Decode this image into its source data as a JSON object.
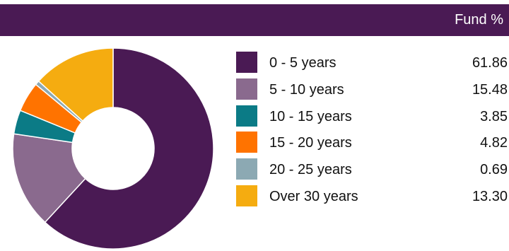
{
  "header": {
    "column_label": "Fund %"
  },
  "chart_data": {
    "type": "pie",
    "donut": true,
    "title": "",
    "legend_position": "right",
    "slices": [
      {
        "label": "0 - 5 years",
        "value": 61.86,
        "value_text": "61.86",
        "color": "#4a1a54"
      },
      {
        "label": "5 - 10 years",
        "value": 15.48,
        "value_text": "15.48",
        "color": "#8a6a8e"
      },
      {
        "label": "10 - 15 years",
        "value": 3.85,
        "value_text": "3.85",
        "color": "#0b7b86"
      },
      {
        "label": "15 - 20 years",
        "value": 4.82,
        "value_text": "4.82",
        "color": "#ff7300"
      },
      {
        "label": "20 - 25 years",
        "value": 0.69,
        "value_text": "0.69",
        "color": "#8ca9b3"
      },
      {
        "label": "Over 30 years",
        "value": 13.3,
        "value_text": "13.30",
        "color": "#f5ac10"
      }
    ]
  }
}
